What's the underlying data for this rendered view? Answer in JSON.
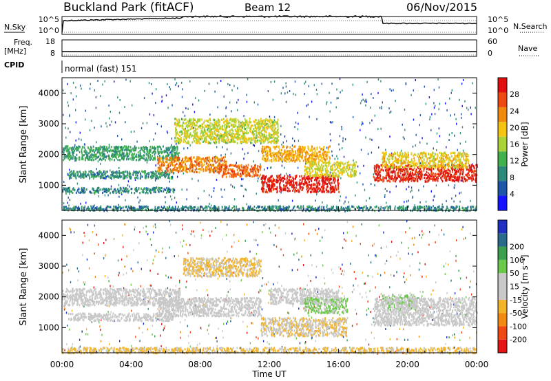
{
  "header": {
    "site": "Buckland Park (fitACF)",
    "beam": "Beam 12",
    "date": "06/Nov/2015"
  },
  "status_panels": {
    "nsky_label": "N.Sky",
    "nsearch_label": "N.Search",
    "freq_label_1": "Freq.",
    "freq_label_2": "[MHz]",
    "nave_label": "Nave",
    "cpid_label": "CPID",
    "cpid_text": "normal (fast) 151",
    "noise_tick_hi": "10^5",
    "noise_tick_lo": "10^0",
    "noise_right_hi": "10^5",
    "noise_right_lo": "10^0",
    "freq_tick_hi": "18",
    "freq_tick_lo": "8",
    "nave_tick_hi": "60",
    "nave_tick_lo": "0"
  },
  "colors": {
    "power_scale": [
      "#1414ff",
      "#1f55a8",
      "#2d8a7a",
      "#42b04c",
      "#a9d13a",
      "#f5c412",
      "#f08a0f",
      "#ec4a12",
      "#e01010"
    ],
    "velocity_scale": [
      "#e21616",
      "#ef4a14",
      "#f08a12",
      "#f2b42a",
      "#c8c8c8",
      "#c8c8c8",
      "#6cc84a",
      "#3aa04e",
      "#2a6a8a",
      "#2030c0"
    ]
  },
  "chart_data": [
    {
      "type": "heatmap",
      "title": "",
      "xlabel": "Time UT",
      "ylabel": "Slant Range [km]",
      "x_ticks": [
        "00:00",
        "04:00",
        "08:00",
        "12:00",
        "16:00",
        "20:00",
        "00:00"
      ],
      "y_ticks": [
        "1000",
        "2000",
        "3000",
        "4000"
      ],
      "y_tick_values": [
        1000,
        2000,
        3000,
        4000
      ],
      "ylim": [
        180,
        4500
      ],
      "xlim_hours": [
        0,
        24
      ],
      "colorbar": {
        "label": "Power [dB]",
        "ticks": [
          "4",
          "8",
          "12",
          "16",
          "20",
          "24",
          "28"
        ],
        "range": [
          0,
          30
        ]
      },
      "features": [
        {
          "t_start": 0.0,
          "t_end": 24.0,
          "r_start": 200,
          "r_end": 350,
          "value": 8
        },
        {
          "t_start": 0.0,
          "t_end": 6.8,
          "r_start": 1850,
          "r_end": 2300,
          "value": 10
        },
        {
          "t_start": 0.3,
          "t_end": 6.5,
          "r_start": 1250,
          "r_end": 1500,
          "value": 9
        },
        {
          "t_start": 0.0,
          "t_end": 6.5,
          "r_start": 780,
          "r_end": 950,
          "value": 8
        },
        {
          "t_start": 5.5,
          "t_end": 9.5,
          "r_start": 1450,
          "r_end": 1950,
          "value": 22
        },
        {
          "t_start": 9.0,
          "t_end": 11.5,
          "r_start": 1300,
          "r_end": 1700,
          "value": 24
        },
        {
          "t_start": 6.5,
          "t_end": 12.5,
          "r_start": 2400,
          "r_end": 3200,
          "value": 16
        },
        {
          "t_start": 11.5,
          "t_end": 16.0,
          "r_start": 800,
          "r_end": 1350,
          "value": 28
        },
        {
          "t_start": 11.5,
          "t_end": 15.5,
          "r_start": 1800,
          "r_end": 2300,
          "value": 20
        },
        {
          "t_start": 14.0,
          "t_end": 17.0,
          "r_start": 1300,
          "r_end": 1800,
          "value": 17
        },
        {
          "t_start": 18.0,
          "t_end": 24.0,
          "r_start": 1150,
          "r_end": 1700,
          "value": 27
        },
        {
          "t_start": 18.5,
          "t_end": 23.5,
          "r_start": 1600,
          "r_end": 2100,
          "value": 18
        }
      ]
    },
    {
      "type": "heatmap",
      "title": "",
      "xlabel": "Time UT",
      "ylabel": "Slant Range [km]",
      "x_ticks": [
        "00:00",
        "04:00",
        "08:00",
        "12:00",
        "16:00",
        "20:00",
        "00:00"
      ],
      "y_ticks": [
        "1000",
        "2000",
        "3000",
        "4000"
      ],
      "y_tick_values": [
        1000,
        2000,
        3000,
        4000
      ],
      "ylim": [
        180,
        4500
      ],
      "xlim_hours": [
        0,
        24
      ],
      "colorbar": {
        "label": "Velocity [m s⁻¹]",
        "ticks": [
          "-200",
          "-100",
          "-50",
          "-15",
          "15",
          "50",
          "100",
          "200"
        ],
        "range": [
          -250,
          250
        ]
      },
      "features": [
        {
          "t_start": 0.0,
          "t_end": 24.0,
          "r_start": 200,
          "r_end": 380,
          "value": -60
        },
        {
          "t_start": 0.0,
          "t_end": 6.8,
          "r_start": 1750,
          "r_end": 2300,
          "value": 0
        },
        {
          "t_start": 0.3,
          "t_end": 6.5,
          "r_start": 1250,
          "r_end": 1500,
          "value": 0
        },
        {
          "t_start": 5.5,
          "t_end": 11.5,
          "r_start": 1400,
          "r_end": 2000,
          "value": 0
        },
        {
          "t_start": 7.0,
          "t_end": 11.5,
          "r_start": 2700,
          "r_end": 3300,
          "value": -60
        },
        {
          "t_start": 11.5,
          "t_end": 16.5,
          "r_start": 750,
          "r_end": 1350,
          "value": -40
        },
        {
          "t_start": 12.0,
          "t_end": 16.0,
          "r_start": 1800,
          "r_end": 2300,
          "value": 0
        },
        {
          "t_start": 14.0,
          "t_end": 16.5,
          "r_start": 1500,
          "r_end": 2000,
          "value": 60
        },
        {
          "t_start": 18.0,
          "t_end": 24.0,
          "r_start": 1100,
          "r_end": 2000,
          "value": 0
        },
        {
          "t_start": 18.5,
          "t_end": 20.5,
          "r_start": 1600,
          "r_end": 2100,
          "value": 40
        }
      ]
    }
  ]
}
